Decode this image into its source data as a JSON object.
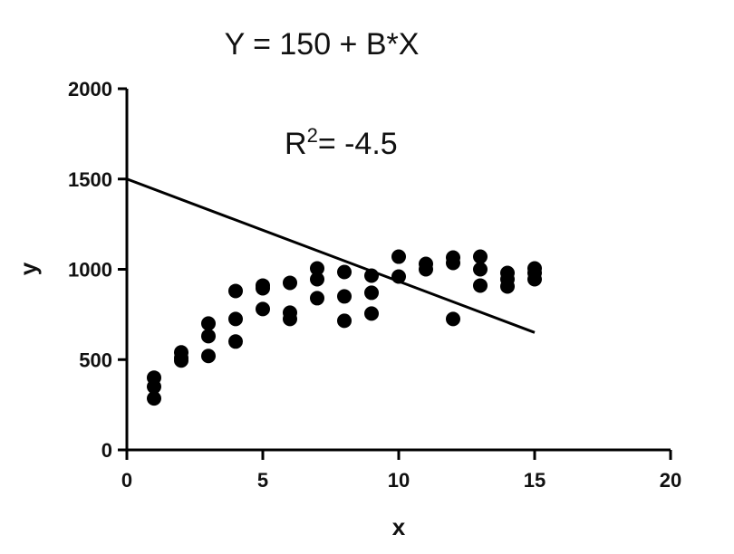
{
  "chart_data": {
    "type": "scatter",
    "title": "Y = 150 +  B*X",
    "annotation": {
      "r_label": "R",
      "r_sup": "2",
      "r_value": "= -4.5"
    },
    "xlabel": "x",
    "ylabel": "y",
    "xlim": [
      0,
      20
    ],
    "ylim": [
      0,
      2000
    ],
    "xticks": [
      0,
      5,
      10,
      15,
      20
    ],
    "yticks": [
      0,
      500,
      1000,
      1500,
      2000
    ],
    "grid": false,
    "series": [
      {
        "x": [
          1,
          1,
          1,
          2,
          2,
          2,
          3,
          3,
          3,
          4,
          4,
          4,
          5,
          5,
          5,
          6,
          6,
          6,
          7,
          7,
          7,
          8,
          8,
          8,
          9,
          9,
          9,
          10,
          10,
          11,
          11,
          12,
          12,
          12,
          13,
          13,
          13,
          14,
          14,
          14,
          15,
          15,
          15
        ],
        "y": [
          400,
          350,
          285,
          540,
          510,
          495,
          700,
          630,
          520,
          880,
          725,
          600,
          910,
          895,
          780,
          925,
          760,
          725,
          1005,
          945,
          840,
          985,
          850,
          715,
          965,
          870,
          755,
          1070,
          960,
          1030,
          1000,
          1065,
          1035,
          725,
          1070,
          1000,
          910,
          980,
          945,
          905,
          1005,
          980,
          945
        ]
      }
    ],
    "fit_line": {
      "x": [
        0,
        15
      ],
      "y": [
        1500,
        650
      ]
    }
  }
}
